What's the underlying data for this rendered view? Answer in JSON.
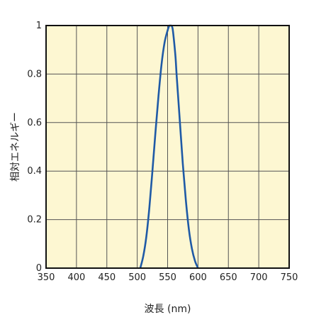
{
  "chart_data": {
    "type": "line",
    "title": "",
    "xlabel": "波長 (nm)",
    "ylabel": "相対エネルギー",
    "xlim": [
      350,
      750
    ],
    "ylim": [
      0,
      1
    ],
    "xticks": [
      350,
      400,
      450,
      500,
      550,
      600,
      650,
      700,
      750
    ],
    "yticks": [
      0,
      0.2,
      0.4,
      0.6,
      0.8,
      1
    ],
    "ytick_labels": [
      "0",
      "0.2",
      "0.4",
      "0.6",
      "0.8",
      "1"
    ],
    "grid": true,
    "colors": {
      "plot_background": "#fdf7d2",
      "grid": "#555555",
      "frame": "#111111",
      "line": "#1f5aa6"
    },
    "series": [
      {
        "x": [
          505,
          510,
          515,
          520,
          525,
          530,
          535,
          540,
          545,
          550,
          553,
          555,
          556,
          558,
          560,
          563,
          565,
          570,
          575,
          580,
          585,
          590,
          595,
          600
        ],
        "y": [
          0.0,
          0.05,
          0.13,
          0.25,
          0.4,
          0.56,
          0.71,
          0.84,
          0.93,
          0.98,
          1.0,
          1.0,
          1.0,
          0.99,
          0.95,
          0.87,
          0.79,
          0.61,
          0.43,
          0.28,
          0.16,
          0.08,
          0.03,
          0.0
        ]
      }
    ]
  }
}
